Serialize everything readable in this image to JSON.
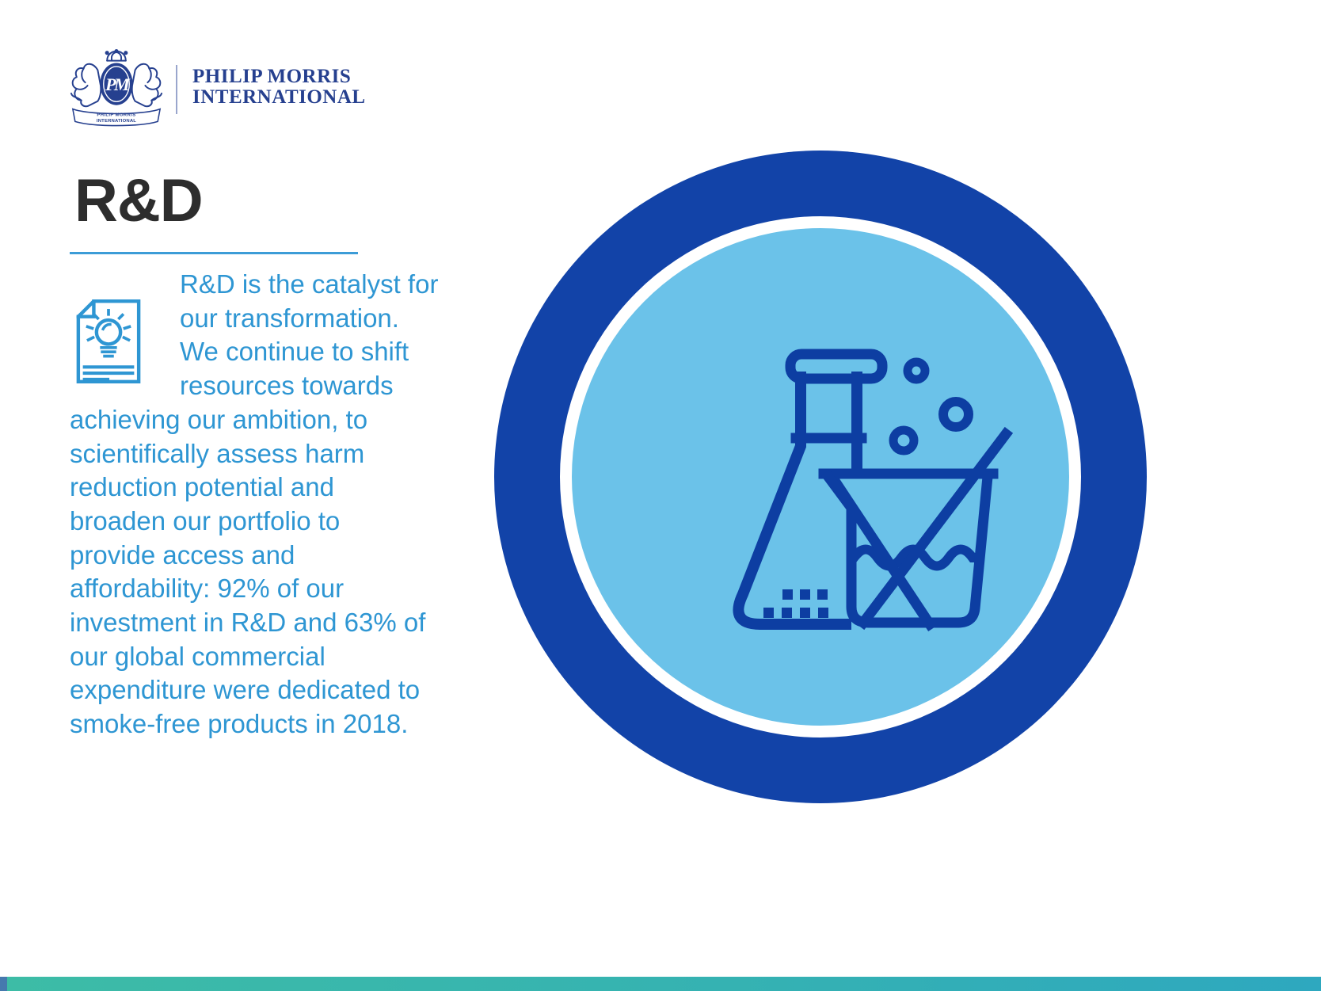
{
  "brand": {
    "crest_monogram": "PM",
    "crest_banner_line1": "PHILIP MORRIS",
    "crest_banner_line2": "INTERNATIONAL",
    "wordmark_line1": "PHILIP MORRIS",
    "wordmark_line2": "INTERNATIONAL"
  },
  "heading": {
    "title": "R&D"
  },
  "paragraph": {
    "lines": [
      "R&D is the catalyst for",
      "our transformation.",
      "We continue to shift",
      "resources towards",
      "achieving our ambition, to",
      "scientifically assess harm",
      "reduction potential and",
      "broaden our portfolio to",
      "provide access and",
      "affordability: 92% of our",
      "investment in R&D and 63% of",
      "our global commercial",
      "expenditure were dedicated to",
      "smoke-free products in 2018."
    ]
  },
  "icons": {
    "crest": "pmi-crest-logo-icon",
    "document_idea": "document-lightbulb-icon",
    "lab": "flask-beaker-lab-icon"
  },
  "colors": {
    "paragraph_blue": "#2e96d3",
    "logo_navy": "#26408f",
    "ring_blue": "#1243a8",
    "inner_light_blue": "#6bc2e9",
    "icon_navy": "#0d3ea2",
    "heading_gray": "#2d2d2d",
    "footer_teal_left": "#3dbca6",
    "footer_teal_right": "#2ea8bf"
  }
}
